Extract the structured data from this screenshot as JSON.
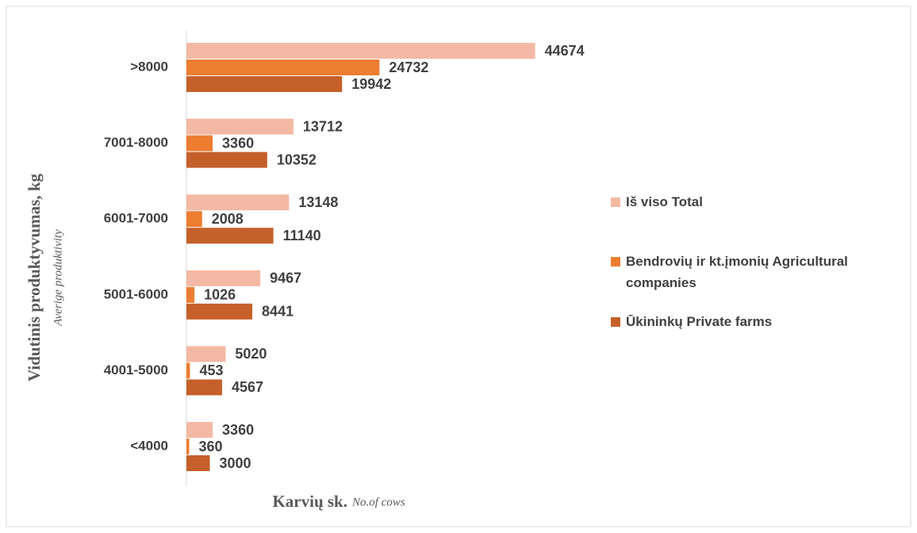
{
  "chart_data": {
    "type": "hbar",
    "categories": [
      ">8000",
      "7001-8000",
      "6001-7000",
      "5001-6000",
      "4001-5000",
      "<4000"
    ],
    "series": [
      {
        "name": "Iš viso Total",
        "color": "#f4b9a4",
        "values": [
          44674,
          13712,
          13148,
          9467,
          5020,
          3360
        ]
      },
      {
        "name": "Bendrovių ir kt.įmonių Agricultural companies",
        "color": "#ed7d31",
        "values": [
          24732,
          3360,
          2008,
          1026,
          453,
          360
        ]
      },
      {
        "name": "Ūkininkų Private farms",
        "color": "#c5602b",
        "values": [
          19942,
          10352,
          11140,
          8441,
          4567,
          3000
        ]
      }
    ],
    "xlim": [
      0,
      50000
    ],
    "y_label": "Vidutinis produktyvumas, kg",
    "y_label_secondary": "Averige produktivity",
    "x_label": "Karvių sk.",
    "x_label_secondary": "No.of cows",
    "legend": "right"
  }
}
